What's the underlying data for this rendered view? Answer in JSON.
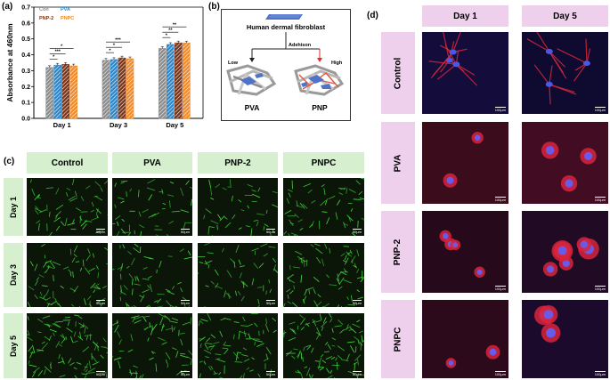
{
  "panels": {
    "a": "(a)",
    "b": "(b)",
    "c": "(c)",
    "d": "(d)"
  },
  "chart_data": {
    "type": "bar",
    "ylabel": "Absorbance at 460nm",
    "categories": [
      "Day 1",
      "Day 3",
      "Day 5"
    ],
    "ylim": [
      0.0,
      0.7
    ],
    "yticks": [
      "0.0",
      "0.1",
      "0.2",
      "0.3",
      "0.4",
      "0.5",
      "0.6",
      "0.7"
    ],
    "series": [
      {
        "name": "Con",
        "color": "#8c8c8c",
        "values": [
          0.32,
          0.365,
          0.44
        ]
      },
      {
        "name": "PVA",
        "color": "#2e86c8",
        "values": [
          0.335,
          0.37,
          0.465
        ]
      },
      {
        "name": "PNP-2",
        "color": "#7a3518",
        "values": [
          0.34,
          0.38,
          0.475
        ]
      },
      {
        "name": "PNPC",
        "color": "#f08a2a",
        "values": [
          0.33,
          0.375,
          0.475
        ]
      }
    ],
    "significance": [
      "*",
      "***",
      "*",
      "*",
      "*",
      "***",
      "*",
      "**",
      "**"
    ]
  },
  "diagram": {
    "title": "Human dermal fibroblast",
    "arrow_label": "Adehison",
    "low_label": "Low",
    "high_label": "High",
    "left_label": "PVA",
    "right_label": "PNP"
  },
  "grid_c": {
    "columns": [
      "Control",
      "PVA",
      "PNP-2",
      "PNPC"
    ],
    "rows": [
      "Day 1",
      "Day 3",
      "Day 5"
    ],
    "scale_bar": "50μm"
  },
  "grid_d": {
    "columns": [
      "Day 1",
      "Day 5"
    ],
    "rows": [
      "Control",
      "PVA",
      "PNP-2",
      "PNPC"
    ],
    "scale_bar": "100μm"
  },
  "colors": {
    "green_bg": "#d6f0cf",
    "pink_bg": "#efd0ec",
    "cell_green": "#3fd23a",
    "cell_red": "#e0283c",
    "nucleus_blue": "#4a58e8"
  }
}
